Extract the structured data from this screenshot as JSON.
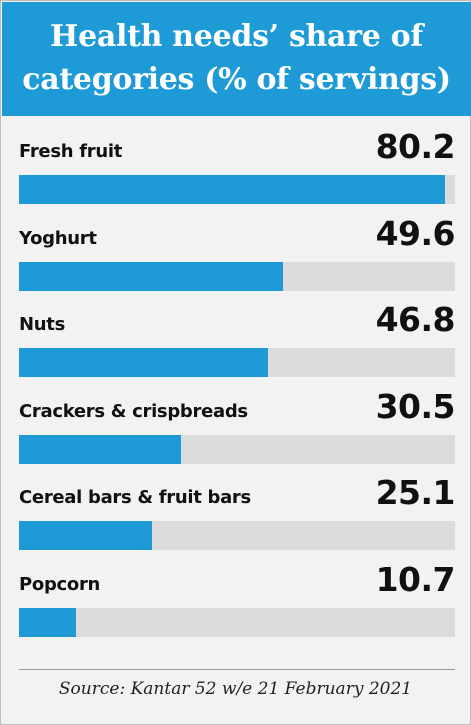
{
  "chart_data": {
    "type": "bar",
    "orientation": "horizontal",
    "title": "Health needs’ share of categories (% of servings)",
    "categories": [
      "Fresh fruit",
      "Yoghurt",
      "Nuts",
      "Crackers & crispbreads",
      "Cereal bars & fruit bars",
      "Popcorn"
    ],
    "values": [
      80.2,
      49.6,
      46.8,
      30.5,
      25.1,
      10.7
    ],
    "value_labels": [
      "80.2",
      "49.6",
      "46.8",
      "30.5",
      "25.1",
      "10.7"
    ],
    "xlim": [
      0,
      82
    ],
    "grid": false,
    "colors": {
      "bar": "#1e9bd7",
      "track": "#dcdcdc",
      "header": "#1e9bd7"
    }
  },
  "source": "Source: Kantar 52 w/e 21 February 2021"
}
